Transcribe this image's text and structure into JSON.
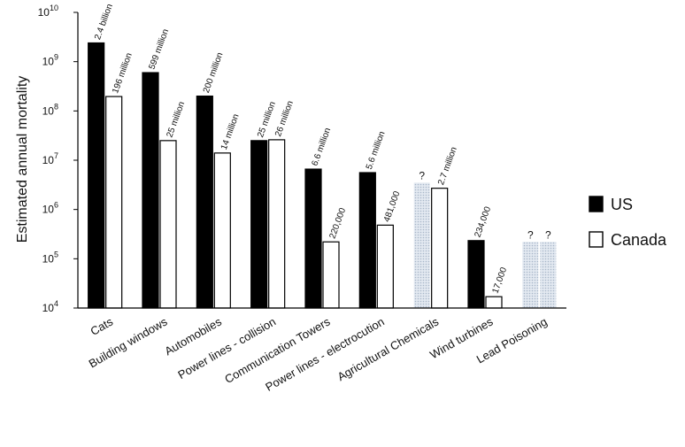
{
  "chart_data": {
    "type": "bar",
    "scale": "log",
    "title": "",
    "xlabel": "",
    "ylabel": "Estimated annual mortality",
    "ylim": [
      10000,
      10000000000
    ],
    "y_ticks": [
      {
        "value": 10000,
        "base": "10",
        "exp": "4"
      },
      {
        "value": 100000,
        "base": "10",
        "exp": "5"
      },
      {
        "value": 1000000,
        "base": "10",
        "exp": "6"
      },
      {
        "value": 10000000,
        "base": "10",
        "exp": "7"
      },
      {
        "value": 100000000,
        "base": "10",
        "exp": "8"
      },
      {
        "value": 1000000000,
        "base": "10",
        "exp": "9"
      },
      {
        "value": 10000000000,
        "base": "10",
        "exp": "10"
      }
    ],
    "categories": [
      "Cats",
      "Building windows",
      "Automobiles",
      "Power lines - collision",
      "Communication Towers",
      "Power lines - electrocution",
      "Agricultural Chemicals",
      "Wind turbines",
      "Lead Poisoning"
    ],
    "legend": {
      "position": "right",
      "entries": [
        "US",
        "Canada"
      ]
    },
    "series": [
      {
        "name": "US",
        "color": "#000000",
        "values": [
          2400000000,
          599000000,
          200000000,
          25000000,
          6600000,
          5600000,
          null,
          234000,
          null
        ],
        "labels": [
          "2.4 billion",
          "599 million",
          "200 million",
          "25 million",
          "6.6 million",
          "5.6 million",
          "",
          "234,000",
          ""
        ]
      },
      {
        "name": "Canada",
        "color": "#ffffff",
        "values": [
          196000000,
          25000000,
          14000000,
          26000000,
          220000,
          481000,
          2700000,
          17000,
          null
        ],
        "labels": [
          "196 million",
          "25 million",
          "14 million",
          "26 million",
          "220,000",
          "481,000",
          "2.7 million",
          "17,000",
          ""
        ]
      }
    ],
    "unknown_bars": [
      {
        "category": "Agricultural Chemicals",
        "series": "US",
        "approx_value": 3500000,
        "label": "?"
      },
      {
        "category": "Lead Poisoning",
        "series": "US",
        "approx_value": 220000,
        "label": "?"
      },
      {
        "category": "Lead Poisoning",
        "series": "Canada",
        "approx_value": 220000,
        "label": "?"
      }
    ]
  }
}
